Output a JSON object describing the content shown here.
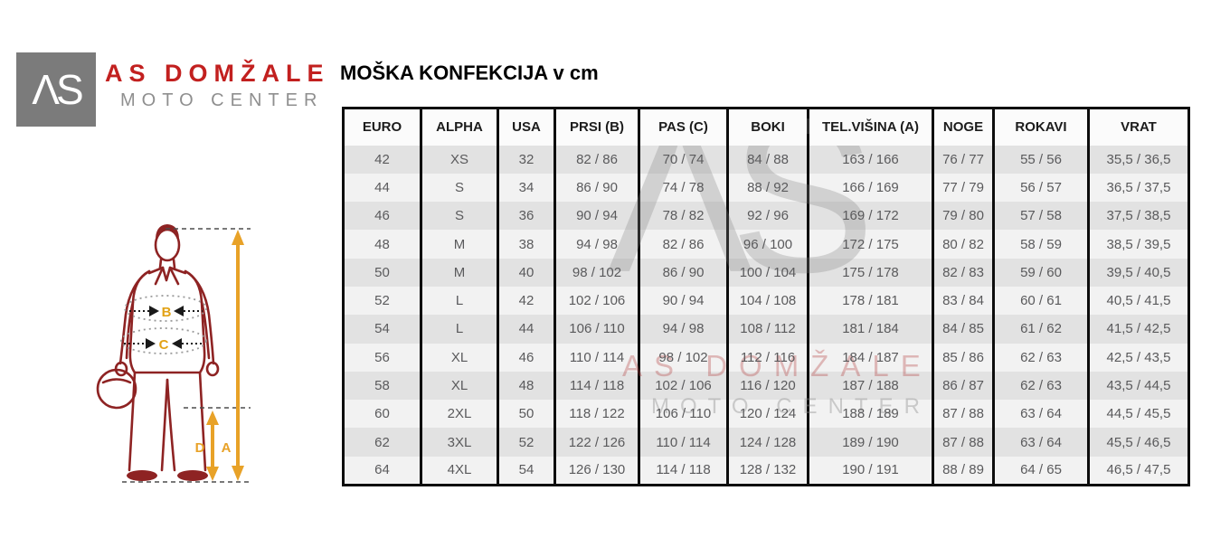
{
  "brand": {
    "monogram": "ΛS",
    "name": "AS DOMŽALE",
    "tagline": "MOTO CENTER"
  },
  "page_title": "MOŠKA KONFEKCIJA v cm",
  "diagram": {
    "labels": {
      "chest": "B",
      "waist": "C",
      "inseam": "D",
      "height": "A"
    }
  },
  "watermark": {
    "monogram": "ΛS",
    "line1": "AS DOMŽALE",
    "line2": "MOTO CENTER"
  },
  "size_table": {
    "columns": [
      "EURO",
      "ALPHA",
      "USA",
      "PRSI (B)",
      "PAS (C)",
      "BOKI",
      "TEL.VIŠINA (A)",
      "NOGE",
      "ROKAVI",
      "VRAT"
    ],
    "rows": [
      [
        "42",
        "XS",
        "32",
        "82 / 86",
        "70 / 74",
        "84 / 88",
        "163 / 166",
        "76 / 77",
        "55 / 56",
        "35,5 / 36,5"
      ],
      [
        "44",
        "S",
        "34",
        "86 / 90",
        "74 / 78",
        "88 / 92",
        "166 / 169",
        "77 / 79",
        "56 / 57",
        "36,5 / 37,5"
      ],
      [
        "46",
        "S",
        "36",
        "90 / 94",
        "78 / 82",
        "92 / 96",
        "169 / 172",
        "79 / 80",
        "57 / 58",
        "37,5 / 38,5"
      ],
      [
        "48",
        "M",
        "38",
        "94 / 98",
        "82 / 86",
        "96 / 100",
        "172 / 175",
        "80 / 82",
        "58 / 59",
        "38,5 / 39,5"
      ],
      [
        "50",
        "M",
        "40",
        "98 / 102",
        "86 / 90",
        "100 / 104",
        "175 / 178",
        "82 / 83",
        "59 / 60",
        "39,5 / 40,5"
      ],
      [
        "52",
        "L",
        "42",
        "102 / 106",
        "90 / 94",
        "104 / 108",
        "178 / 181",
        "83 / 84",
        "60 / 61",
        "40,5 / 41,5"
      ],
      [
        "54",
        "L",
        "44",
        "106 / 110",
        "94 / 98",
        "108 / 112",
        "181 / 184",
        "84 / 85",
        "61 / 62",
        "41,5 / 42,5"
      ],
      [
        "56",
        "XL",
        "46",
        "110 / 114",
        "98 / 102",
        "112 / 116",
        "184 / 187",
        "85 / 86",
        "62 / 63",
        "42,5 / 43,5"
      ],
      [
        "58",
        "XL",
        "48",
        "114 / 118",
        "102 / 106",
        "116 / 120",
        "187 / 188",
        "86 / 87",
        "62 / 63",
        "43,5 / 44,5"
      ],
      [
        "60",
        "2XL",
        "50",
        "118 / 122",
        "106 / 110",
        "120 / 124",
        "188 / 189",
        "87 / 88",
        "63 / 64",
        "44,5 / 45,5"
      ],
      [
        "62",
        "3XL",
        "52",
        "122 / 126",
        "110 / 114",
        "124 / 128",
        "189 / 190",
        "87 / 88",
        "63 / 64",
        "45,5 / 46,5"
      ],
      [
        "64",
        "4XL",
        "54",
        "126 / 130",
        "114 / 118",
        "128 / 132",
        "190 / 191",
        "88 / 89",
        "64 / 65",
        "46,5 / 47,5"
      ]
    ]
  },
  "colors": {
    "brand_red": "#C2201F",
    "logo_gray": "#7B7B7B",
    "figure_maroon": "#8E2323",
    "accent_orange": "#E8A228",
    "label_yellow": "#E2A216",
    "row_odd": "#E2E2E2",
    "row_even": "#F2F2F2",
    "table_border": "#0D0D0D"
  }
}
